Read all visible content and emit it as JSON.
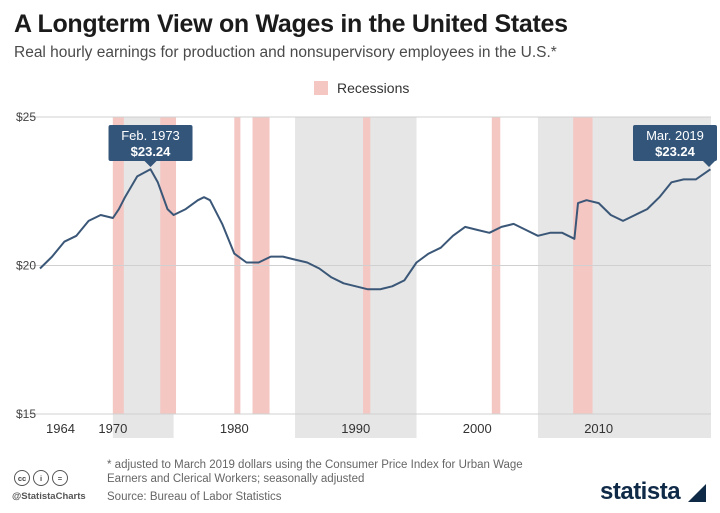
{
  "header": {
    "title": "A Longterm View on Wages in the United States",
    "subtitle": "Real hourly earnings for production and nonsupervisory employees in the U.S.*"
  },
  "legend": {
    "label": "Recessions",
    "color": "#f4c7c3"
  },
  "colors": {
    "line": "#3b5778",
    "shade": "#e6e6e6",
    "recession": "#f4c7c3",
    "callout": "#33557a"
  },
  "chart_data": {
    "type": "line",
    "title": "A Longterm View on Wages in the United States",
    "subtitle": "Real hourly earnings for production and nonsupervisory employees in the U.S.*",
    "xlim": [
      1964,
      2019.25
    ],
    "ylim": [
      15,
      25
    ],
    "y_ticks": [
      {
        "value": 25,
        "label": "$25"
      },
      {
        "value": 20,
        "label": "$20"
      },
      {
        "value": 15,
        "label": "$15"
      }
    ],
    "x_ticks": [
      {
        "value": 1964,
        "label": "1964"
      },
      {
        "value": 1970,
        "label": "1970"
      },
      {
        "value": 1980,
        "label": "1980"
      },
      {
        "value": 1990,
        "label": "1990"
      },
      {
        "value": 2000,
        "label": "2000"
      },
      {
        "value": 2010,
        "label": "2010"
      }
    ],
    "shaded_bands": [
      [
        1970,
        1975
      ],
      [
        1985,
        1995
      ],
      [
        2005,
        2019.25
      ]
    ],
    "recessions": [
      [
        1970,
        1970.9
      ],
      [
        1973.9,
        1975.2
      ],
      [
        1980,
        1980.5
      ],
      [
        1981.5,
        1982.9
      ],
      [
        1990.6,
        1991.2
      ],
      [
        2001.2,
        2001.9
      ],
      [
        2007.9,
        2009.5
      ]
    ],
    "series": [
      {
        "values": [
          [
            1964.0,
            19.9
          ],
          [
            1965.0,
            20.3
          ],
          [
            1966.0,
            20.8
          ],
          [
            1967.0,
            21.0
          ],
          [
            1968.0,
            21.5
          ],
          [
            1969.0,
            21.7
          ],
          [
            1970.0,
            21.6
          ],
          [
            1970.5,
            21.9
          ],
          [
            1971.0,
            22.3
          ],
          [
            1972.0,
            23.0
          ],
          [
            1973.1,
            23.24
          ],
          [
            1973.7,
            22.8
          ],
          [
            1974.5,
            21.9
          ],
          [
            1975.0,
            21.7
          ],
          [
            1976.0,
            21.9
          ],
          [
            1977.0,
            22.2
          ],
          [
            1977.5,
            22.3
          ],
          [
            1978.0,
            22.2
          ],
          [
            1979.0,
            21.4
          ],
          [
            1980.0,
            20.4
          ],
          [
            1981.0,
            20.1
          ],
          [
            1982.0,
            20.1
          ],
          [
            1983.0,
            20.3
          ],
          [
            1984.0,
            20.3
          ],
          [
            1985.0,
            20.2
          ],
          [
            1986.0,
            20.1
          ],
          [
            1987.0,
            19.9
          ],
          [
            1988.0,
            19.6
          ],
          [
            1989.0,
            19.4
          ],
          [
            1990.0,
            19.3
          ],
          [
            1991.0,
            19.2
          ],
          [
            1992.0,
            19.2
          ],
          [
            1993.0,
            19.3
          ],
          [
            1994.0,
            19.5
          ],
          [
            1995.0,
            20.1
          ],
          [
            1996.0,
            20.4
          ],
          [
            1997.0,
            20.6
          ],
          [
            1998.0,
            21.0
          ],
          [
            1999.0,
            21.3
          ],
          [
            2000.0,
            21.2
          ],
          [
            2001.0,
            21.1
          ],
          [
            2002.0,
            21.3
          ],
          [
            2003.0,
            21.4
          ],
          [
            2004.0,
            21.2
          ],
          [
            2005.0,
            21.0
          ],
          [
            2006.0,
            21.1
          ],
          [
            2007.0,
            21.1
          ],
          [
            2007.5,
            21.0
          ],
          [
            2008.0,
            20.9
          ],
          [
            2008.3,
            22.1
          ],
          [
            2009.0,
            22.2
          ],
          [
            2010.0,
            22.1
          ],
          [
            2011.0,
            21.7
          ],
          [
            2012.0,
            21.5
          ],
          [
            2013.0,
            21.7
          ],
          [
            2014.0,
            21.9
          ],
          [
            2015.0,
            22.3
          ],
          [
            2016.0,
            22.8
          ],
          [
            2017.0,
            22.9
          ],
          [
            2018.0,
            22.9
          ],
          [
            2019.2,
            23.24
          ]
        ]
      }
    ],
    "annotations": [
      {
        "x": 1973.1,
        "y": 23.24,
        "date": "Feb. 1973",
        "value": "$23.24"
      },
      {
        "x": 2019.2,
        "y": 23.24,
        "date": "Mar. 2019",
        "value": "$23.24"
      }
    ]
  },
  "footer": {
    "note": "* adjusted to March 2019 dollars using the Consumer Price Index for Urban Wage Earners and Clerical Workers; seasonally adjusted",
    "source": "Source: Bureau of Labor Statistics",
    "handle": "@StatistaCharts",
    "brand": "statista",
    "license_badges": [
      "cc",
      "i",
      "="
    ]
  }
}
